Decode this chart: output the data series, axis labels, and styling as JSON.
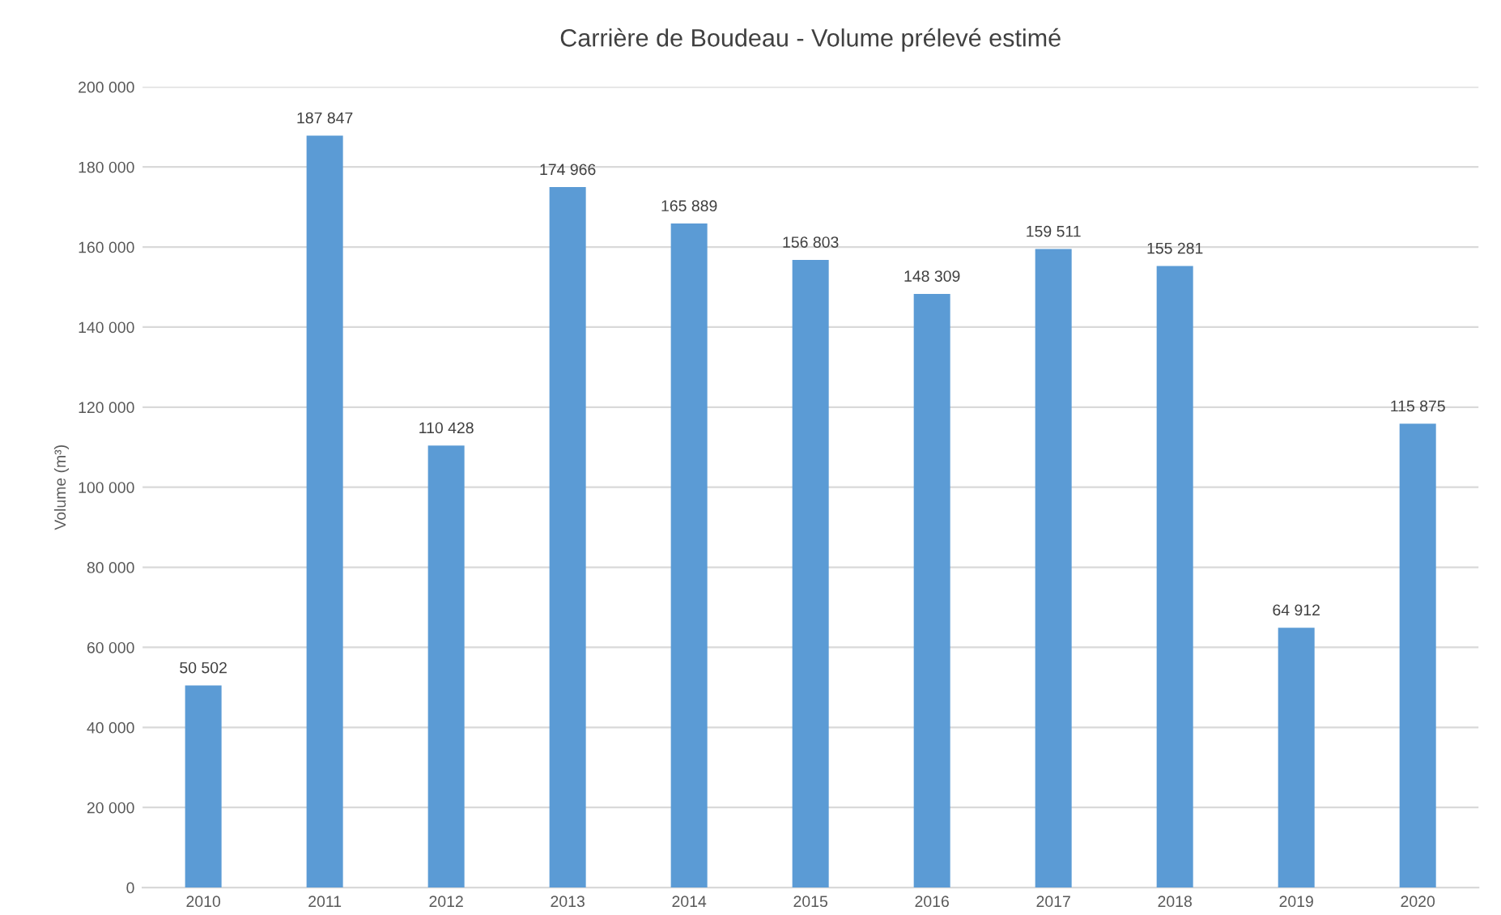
{
  "chart_data": {
    "type": "bar",
    "title": "Carrière de Boudeau - Volume prélevé estimé",
    "ylabel": "Volume (m³)",
    "categories": [
      "2010",
      "2011",
      "2012",
      "2013",
      "2014",
      "2015",
      "2016",
      "2017",
      "2018",
      "2019",
      "2020"
    ],
    "values": [
      50502,
      187847,
      110428,
      174966,
      165889,
      156803,
      148309,
      159511,
      155281,
      64912,
      115875
    ],
    "value_labels": [
      "50 502",
      "187 847",
      "110 428",
      "174 966",
      "165 889",
      "156 803",
      "148 309",
      "159 511",
      "155 281",
      "64 912",
      "115 875"
    ],
    "color": "#5b9bd5",
    "ylim": [
      0,
      200000
    ],
    "yticks": [
      {
        "value": 0,
        "label": "0"
      },
      {
        "value": 20000,
        "label": "20 000"
      },
      {
        "value": 40000,
        "label": "40 000"
      },
      {
        "value": 60000,
        "label": "60 000"
      },
      {
        "value": 80000,
        "label": "80 000"
      },
      {
        "value": 100000,
        "label": "100 000"
      },
      {
        "value": 120000,
        "label": "120 000"
      },
      {
        "value": 140000,
        "label": "140 000"
      },
      {
        "value": 160000,
        "label": "160 000"
      },
      {
        "value": 180000,
        "label": "180 000"
      },
      {
        "value": 200000,
        "label": "200 000"
      }
    ],
    "grid": "y",
    "legend": false
  }
}
